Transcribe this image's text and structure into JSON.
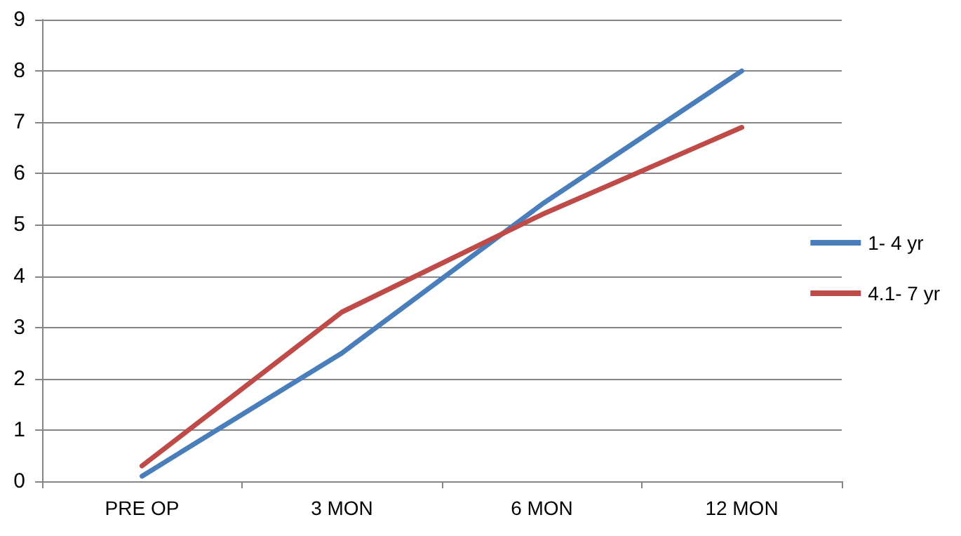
{
  "chart_data": {
    "type": "line",
    "categories": [
      "PRE OP",
      "3 MON",
      "6 MON",
      "12 MON"
    ],
    "series": [
      {
        "name": "1- 4 yr",
        "color": "#4a7ebb",
        "values": [
          0.1,
          2.5,
          5.4,
          8.0
        ]
      },
      {
        "name": "4.1- 7 yr",
        "color": "#be4b48",
        "values": [
          0.3,
          3.3,
          5.2,
          6.9
        ]
      }
    ],
    "ylim": [
      0,
      9
    ],
    "yticks": [
      0,
      1,
      2,
      3,
      4,
      5,
      6,
      7,
      8,
      9
    ],
    "grid": "y",
    "legend": "right",
    "marker": "none",
    "line_style": "solid"
  }
}
